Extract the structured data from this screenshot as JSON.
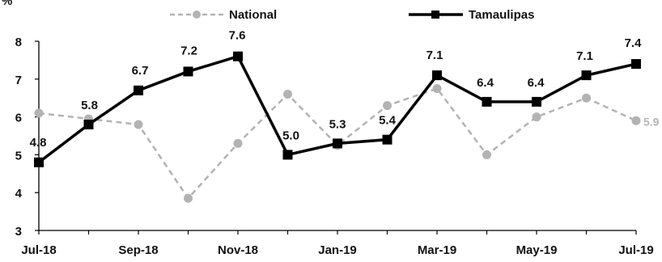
{
  "chart_data": {
    "type": "line",
    "y_unit_label": "%",
    "categories": [
      "Jul-18",
      "Aug-18",
      "Sep-18",
      "Oct-18",
      "Nov-18",
      "Dec-18",
      "Jan-19",
      "Feb-19",
      "Mar-19",
      "Apr-19",
      "May-19",
      "Jun-19",
      "Jul-19"
    ],
    "x_tick_labels": [
      "Jul-18",
      "",
      "Sep-18",
      "",
      "Nov-18",
      "",
      "Jan-19",
      "",
      "Mar-19",
      "",
      "May-19",
      "",
      "Jul-19"
    ],
    "ylim": [
      3,
      8
    ],
    "y_ticks": [
      "3",
      "4",
      "5",
      "6",
      "7",
      "8"
    ],
    "legend_position": "top",
    "grid": false,
    "series": [
      {
        "name": "National",
        "style": "dashed",
        "color": "#b3b3b3",
        "marker": "circle",
        "values": [
          6.1,
          5.95,
          5.8,
          3.85,
          5.3,
          6.6,
          5.25,
          6.3,
          6.75,
          5.0,
          6.0,
          6.5,
          5.9
        ],
        "labels": [
          "",
          "",
          "",
          "",
          "",
          "",
          "",
          "",
          "",
          "",
          "",
          "",
          "5.9"
        ]
      },
      {
        "name": "Tamaulipas",
        "style": "solid",
        "color": "#000000",
        "marker": "square",
        "values": [
          4.8,
          5.8,
          6.7,
          7.2,
          7.6,
          5.0,
          5.3,
          5.4,
          7.1,
          6.4,
          6.4,
          7.1,
          7.4
        ],
        "labels": [
          "4.8",
          "5.8",
          "6.7",
          "7.2",
          "7.6",
          "5.0",
          "5.3",
          "5.4",
          "7.1",
          "6.4",
          "6.4",
          "7.1",
          "7.4"
        ]
      }
    ]
  }
}
